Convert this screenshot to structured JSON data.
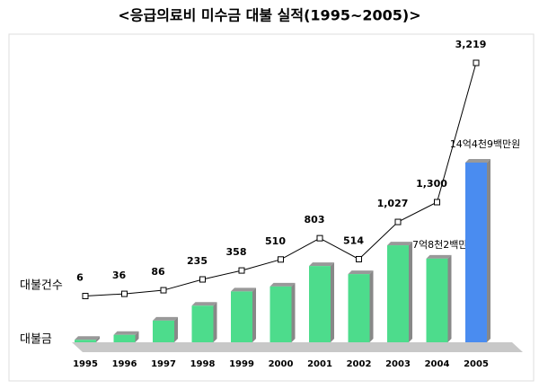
{
  "chart_data": {
    "type": "bar-line",
    "title": "<응급의료비 미수금 대불 실적(1995~2005)>",
    "categories": [
      "1995",
      "1996",
      "1997",
      "1998",
      "1999",
      "2000",
      "2001",
      "2002",
      "2003",
      "2004",
      "2005"
    ],
    "series": [
      {
        "name": "대불건수",
        "type": "line",
        "color": "#000000",
        "values": [
          6,
          36,
          86,
          235,
          358,
          510,
          803,
          514,
          1027,
          1300,
          3219
        ],
        "value_labels": [
          "6",
          "36",
          "86",
          "235",
          "358",
          "510",
          "803",
          "514",
          "1,027",
          "1,300",
          "3,219"
        ]
      },
      {
        "name": "대불금",
        "type": "bar",
        "colors": [
          "#4ddc8c",
          "#4ddc8c",
          "#4ddc8c",
          "#4ddc8c",
          "#4ddc8c",
          "#4ddc8c",
          "#4ddc8c",
          "#4ddc8c",
          "#4ddc8c",
          "#4ddc8c",
          "#4a8cf0"
        ],
        "values": [
          20,
          60,
          175,
          295,
          410,
          450,
          615,
          550,
          782,
          675,
          1449
        ],
        "value_labels": [
          null,
          null,
          null,
          null,
          null,
          null,
          null,
          null,
          "7억8천2백만원",
          null,
          "14억4천9백만원"
        ]
      }
    ]
  }
}
